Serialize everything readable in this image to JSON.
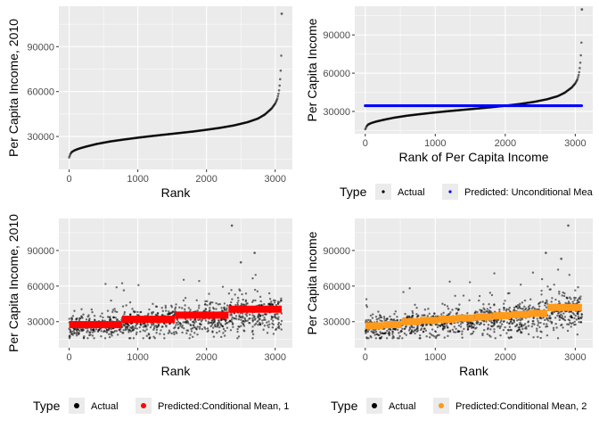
{
  "chart_data": [
    {
      "type": "scatter",
      "xlabel": "Rank",
      "ylabel": "Per Capita Income, 2010",
      "xlim": [
        -150,
        3250
      ],
      "ylim": [
        8000,
        117000
      ],
      "xticks": [
        0,
        1000,
        2000,
        3000
      ],
      "yticks": [
        30000,
        60000,
        90000
      ],
      "grid": true,
      "series": [
        {
          "color": "#000000",
          "points": [
            [
              0,
              16000
            ],
            [
              20,
              18500
            ],
            [
              40,
              19700
            ],
            [
              80,
              20800
            ],
            [
              150,
              22000
            ],
            [
              250,
              23300
            ],
            [
              400,
              25000
            ],
            [
              600,
              26700
            ],
            [
              800,
              28000
            ],
            [
              1000,
              29200
            ],
            [
              1200,
              30300
            ],
            [
              1400,
              31300
            ],
            [
              1600,
              32300
            ],
            [
              1800,
              33300
            ],
            [
              2000,
              34500
            ],
            [
              2200,
              35800
            ],
            [
              2400,
              37400
            ],
            [
              2600,
              39600
            ],
            [
              2750,
              42000
            ],
            [
              2850,
              44700
            ],
            [
              2950,
              48800
            ],
            [
              3000,
              52000
            ],
            [
              3030,
              55000
            ],
            [
              3050,
              59000
            ],
            [
              3060,
              62000
            ],
            [
              3070,
              67000
            ],
            [
              3078,
              72000
            ],
            [
              3084,
              78000
            ],
            [
              3088,
              84000
            ],
            [
              3090,
              88000
            ],
            [
              3095,
              112000
            ]
          ]
        }
      ]
    },
    {
      "type": "scatter",
      "xlabel": "Rank of Per Capita Income",
      "ylabel": "Per Capita Income",
      "xlim": [
        -150,
        3250
      ],
      "ylim": [
        12500,
        112500
      ],
      "xticks": [
        0,
        1000,
        2000,
        3000
      ],
      "yticks": [
        30000,
        60000,
        90000
      ],
      "grid": true,
      "legend": {
        "title": "Type",
        "position": "bottom",
        "entries": [
          "Actual",
          "Predicted: Unconditional Mea"
        ]
      },
      "series": [
        {
          "name": "Actual",
          "color": "#000000",
          "points": [
            [
              0,
              16000
            ],
            [
              20,
              18500
            ],
            [
              40,
              19700
            ],
            [
              80,
              20800
            ],
            [
              150,
              22000
            ],
            [
              250,
              23300
            ],
            [
              400,
              25000
            ],
            [
              600,
              26700
            ],
            [
              800,
              28000
            ],
            [
              1000,
              29200
            ],
            [
              1200,
              30300
            ],
            [
              1400,
              31300
            ],
            [
              1600,
              32300
            ],
            [
              1800,
              33300
            ],
            [
              2000,
              34500
            ],
            [
              2200,
              35800
            ],
            [
              2400,
              37400
            ],
            [
              2600,
              39600
            ],
            [
              2750,
              42000
            ],
            [
              2850,
              44700
            ],
            [
              2950,
              48800
            ],
            [
              3000,
              52000
            ],
            [
              3030,
              55000
            ],
            [
              3050,
              59000
            ],
            [
              3060,
              62000
            ],
            [
              3070,
              67000
            ],
            [
              3078,
              72000
            ],
            [
              3084,
              78000
            ],
            [
              3088,
              84000
            ],
            [
              3090,
              88000
            ],
            [
              3095,
              110000
            ]
          ]
        },
        {
          "name": "Predicted: Unconditional Mea",
          "color": "#0000ff",
          "points": [
            [
              0,
              34500
            ],
            [
              3095,
              34500
            ]
          ]
        }
      ]
    },
    {
      "type": "scatter",
      "xlabel": "Rank",
      "ylabel": "Per Capita Income, 2010",
      "xlim": [
        -150,
        3250
      ],
      "ylim": [
        8000,
        117000
      ],
      "xticks": [
        0,
        1000,
        2000,
        3000
      ],
      "yticks": [
        30000,
        60000,
        90000
      ],
      "grid": true,
      "legend": {
        "title": "Type",
        "position": "bottom",
        "entries": [
          "Actual",
          "Predicted:Conditional Mean, 1"
        ]
      },
      "series": [
        {
          "name": "Actual",
          "color": "#000000",
          "scatter_range": [
            -3,
            3
          ]
        },
        {
          "name": "Predicted:Conditional Mean, 1",
          "color": "#ff0000",
          "steps": [
            [
              0,
              770,
              27500
            ],
            [
              770,
              1540,
              32000
            ],
            [
              1540,
              2320,
              35500
            ],
            [
              2320,
              3095,
              40500
            ]
          ]
        }
      ]
    },
    {
      "type": "scatter",
      "xlabel": "Rank",
      "ylabel": "Per Capita Income",
      "xlim": [
        -150,
        3250
      ],
      "ylim": [
        8000,
        117000
      ],
      "xticks": [
        0,
        1000,
        2000,
        3000
      ],
      "yticks": [
        30000,
        60000,
        90000
      ],
      "grid": true,
      "legend": {
        "title": "Type",
        "position": "bottom",
        "entries": [
          "Actual",
          "Predicted:Conditional Mean, 2"
        ]
      },
      "series": [
        {
          "name": "Actual",
          "color": "#000000",
          "scatter_range": [
            -3,
            3
          ]
        },
        {
          "name": "Predicted:Conditional Mean, 2",
          "color": "#ff9a1a",
          "steps": [
            [
              0,
              260,
              26500
            ],
            [
              260,
              520,
              27500
            ],
            [
              520,
              780,
              30000
            ],
            [
              780,
              1040,
              31000
            ],
            [
              1040,
              1300,
              32000
            ],
            [
              1300,
              1560,
              33000
            ],
            [
              1560,
              1820,
              34000
            ],
            [
              1820,
              2080,
              35000
            ],
            [
              2080,
              2340,
              36000
            ],
            [
              2340,
              2600,
              37000
            ],
            [
              2600,
              3095,
              42000
            ]
          ]
        }
      ]
    }
  ],
  "tick_labels_x": [
    "0",
    "1000",
    "2000",
    "3000"
  ],
  "tick_labels_y": [
    "30000",
    "60000",
    "90000"
  ]
}
